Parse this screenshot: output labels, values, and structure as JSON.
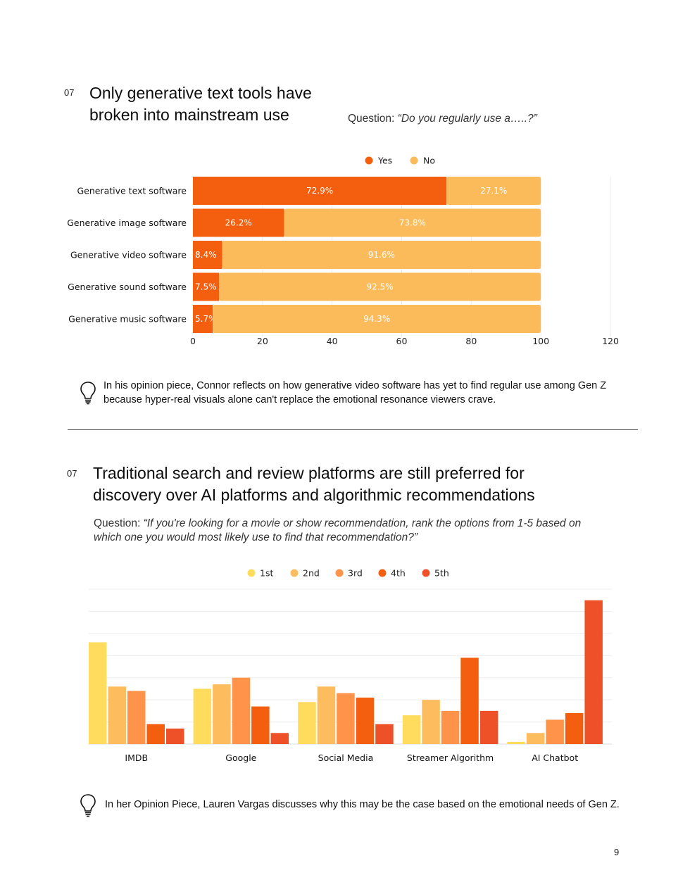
{
  "section1": {
    "number": "07",
    "title_line1": "Only generative text tools have",
    "title_line2": "broken into mainstream use",
    "question_prefix": "Question: ",
    "question_text": "“Do you regularly use a…..?”",
    "note": "In his opinion piece, Connor reflects on how generative video software has yet to find regular use among Gen Z because hyper-real visuals alone can't replace the emotional resonance viewers crave.",
    "icon": "lightbulb-icon"
  },
  "section2": {
    "number": "07",
    "title_line1": "Traditional search and review platforms are still preferred for",
    "title_line2": "discovery over AI platforms and algorithmic recommendations",
    "question_prefix": "Question: ",
    "question_line1": "“If you're looking for a movie or show recommendation, rank the options from 1-5 based on",
    "question_line2": "which one you would most likely use to find that recommendation?”",
    "note": "In her Opinion Piece, Lauren Vargas discusses why this may be the case based on the emotional needs of Gen Z.",
    "icon": "lightbulb-icon"
  },
  "page_number": "9",
  "chart_data": [
    {
      "type": "bar",
      "orientation": "horizontal",
      "stacked": true,
      "categories": [
        "Generative text software",
        "Generative image software",
        "Generative video software",
        "Generative sound software",
        "Generative music software"
      ],
      "series": [
        {
          "name": "Yes",
          "color": "#f45f0f",
          "values": [
            72.9,
            26.2,
            8.4,
            7.5,
            5.7
          ],
          "labels": [
            "72.9%",
            "26.2%",
            "8.4%",
            "7.5%",
            "5.7%"
          ]
        },
        {
          "name": "No",
          "color": "#fcbb5a",
          "values": [
            27.1,
            73.8,
            91.6,
            92.5,
            94.3
          ],
          "labels": [
            "27.1%",
            "73.8%",
            "91.6%",
            "92.5%",
            "94.3%"
          ]
        }
      ],
      "xlim": [
        0,
        120
      ],
      "xticks": [
        "0",
        "20",
        "40",
        "60",
        "80",
        "100",
        "120"
      ],
      "legend": "top-center"
    },
    {
      "type": "bar",
      "orientation": "vertical",
      "stacked": false,
      "categories": [
        "IMDB",
        "Google",
        "Social Media",
        "Streamer Algorithm",
        "AI Chatbot"
      ],
      "series": [
        {
          "name": "1st",
          "color": "#ffdc5e",
          "values": [
            46,
            25,
            19,
            13,
            1
          ]
        },
        {
          "name": "2nd",
          "color": "#fdbd5f",
          "values": [
            26,
            27,
            26,
            20,
            5
          ]
        },
        {
          "name": "3rd",
          "color": "#fe9349",
          "values": [
            24,
            30,
            23,
            15,
            11
          ]
        },
        {
          "name": "4th",
          "color": "#f45f0f",
          "values": [
            9,
            17,
            21,
            39,
            14
          ]
        },
        {
          "name": "5th",
          "color": "#ee5127",
          "values": [
            7,
            5,
            9,
            15,
            65
          ]
        }
      ],
      "ylim": [
        0,
        70
      ],
      "grid": true,
      "legend": "top-center"
    }
  ]
}
